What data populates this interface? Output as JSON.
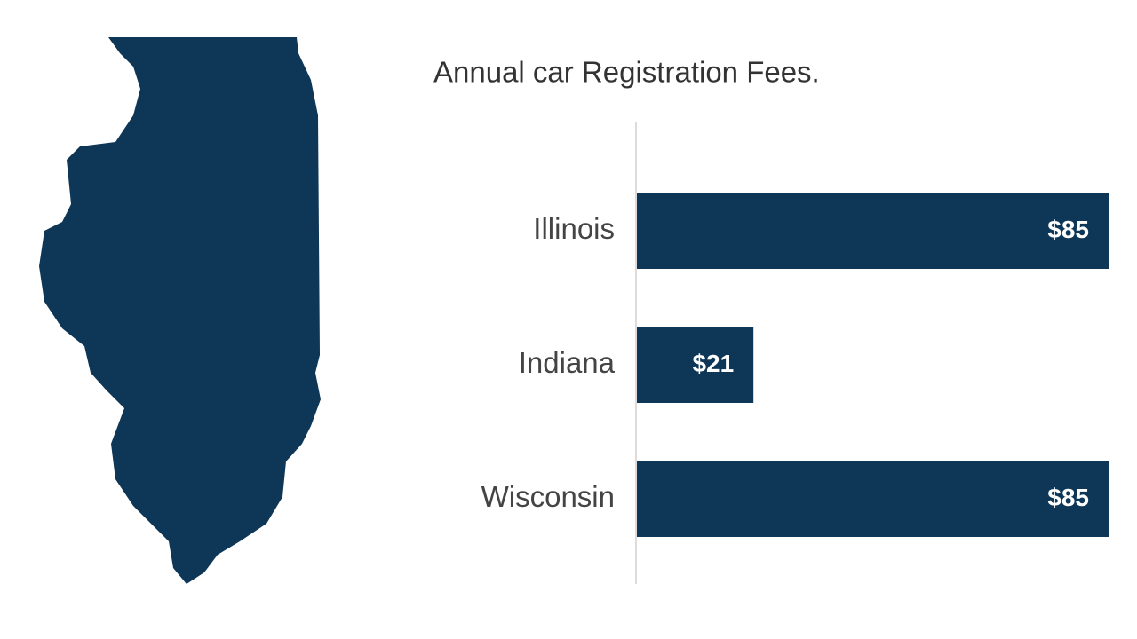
{
  "chart_data": {
    "type": "bar",
    "orientation": "horizontal",
    "title": "Annual car Registration Fees.",
    "categories": [
      "Illinois",
      "Indiana",
      "Wisconsin"
    ],
    "values": [
      85,
      21,
      85
    ],
    "value_labels": [
      "$85",
      "$21",
      "$85"
    ],
    "color": "#0d3657"
  }
}
